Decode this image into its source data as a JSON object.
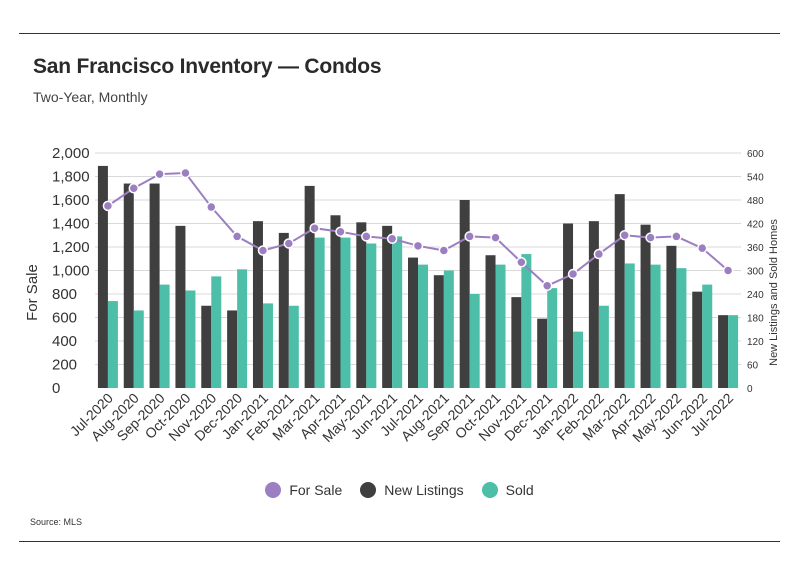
{
  "header": {
    "title": "San Francisco Inventory — Condos",
    "subtitle": "Two-Year, Monthly"
  },
  "footer": {
    "source": "Source:  MLS"
  },
  "colors": {
    "for_sale": "#9b7fc0",
    "new_listings": "#3f3f3f",
    "sold": "#4dbfa8",
    "grid": "#d9d9d9",
    "text": "#333333"
  },
  "chart_data": {
    "type": "bar",
    "categories": [
      "Jul-2020",
      "Aug-2020",
      "Sep-2020",
      "Oct-2020",
      "Nov-2020",
      "Dec-2020",
      "Jan-2021",
      "Feb-2021",
      "Mar-2021",
      "Apr-2021",
      "May-2021",
      "Jun-2021",
      "Jul-2021",
      "Aug-2021",
      "Sep-2021",
      "Oct-2021",
      "Nov-2021",
      "Dec-2021",
      "Jan-2022",
      "Feb-2022",
      "Mar-2022",
      "Apr-2022",
      "May-2022",
      "Jun-2022",
      "Jul-2022"
    ],
    "left_axis": {
      "label": "For Sale",
      "ylim": [
        0,
        2000
      ],
      "ticks": [
        "0",
        "200",
        "400",
        "600",
        "800",
        "1,000",
        "1,200",
        "1,400",
        "1,600",
        "1,800",
        "2,000"
      ],
      "tick_values": [
        0,
        200,
        400,
        600,
        800,
        1000,
        1200,
        1400,
        1600,
        1800,
        2000
      ]
    },
    "right_axis": {
      "label": "New Listings and Sold Homes",
      "ylim": [
        0,
        600
      ],
      "ticks": [
        "0",
        "60",
        "120",
        "180",
        "240",
        "300",
        "360",
        "420",
        "480",
        "540",
        "600"
      ],
      "tick_values": [
        0,
        60,
        120,
        180,
        240,
        300,
        360,
        420,
        480,
        540,
        600
      ]
    },
    "series": [
      {
        "name": "For Sale",
        "type": "line",
        "axis": "left",
        "values": [
          1550,
          1700,
          1820,
          1830,
          1540,
          1290,
          1170,
          1230,
          1360,
          1330,
          1290,
          1270,
          1210,
          1170,
          1290,
          1280,
          1070,
          870,
          970,
          1140,
          1300,
          1280,
          1290,
          1190,
          1000
        ]
      },
      {
        "name": "New Listings",
        "type": "bar",
        "axis": "right",
        "values": [
          567,
          522,
          522,
          414,
          210,
          198,
          426,
          396,
          516,
          441,
          423,
          414,
          333,
          288,
          480,
          339,
          232,
          177,
          420,
          426,
          495,
          417,
          363,
          246,
          186
        ]
      },
      {
        "name": "Sold",
        "type": "bar",
        "axis": "right",
        "values": [
          222,
          198,
          264,
          249,
          285,
          303,
          216,
          210,
          384,
          384,
          369,
          387,
          315,
          300,
          240,
          315,
          342,
          255,
          144,
          210,
          318,
          315,
          306,
          264,
          186
        ]
      }
    ],
    "legend": {
      "placement": "bottom-center"
    },
    "grid": true
  }
}
